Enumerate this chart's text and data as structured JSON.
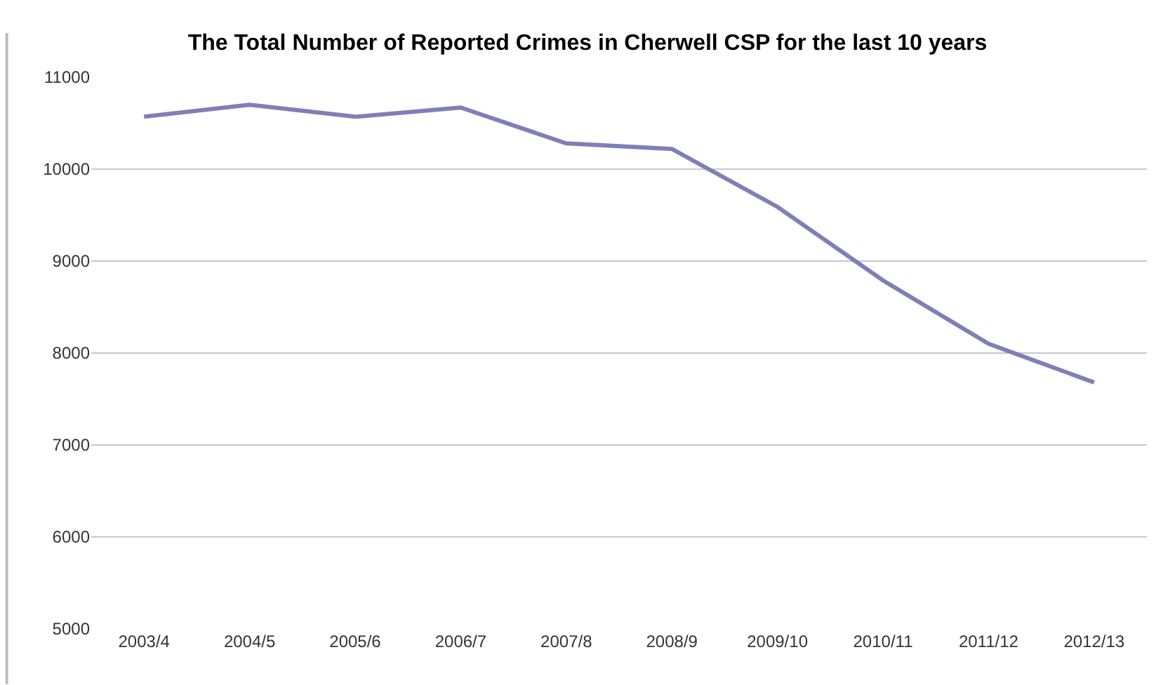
{
  "chart_data": {
    "type": "line",
    "title": "The Total Number of Reported Crimes in Cherwell CSP for the last 10 years",
    "categories": [
      "2003/4",
      "2004/5",
      "2005/6",
      "2006/7",
      "2007/8",
      "2008/9",
      "2009/10",
      "2010/11",
      "2011/12",
      "2012/13"
    ],
    "series": [
      {
        "color": "#7f7fb8",
        "values": [
          10570,
          10700,
          10570,
          10670,
          10280,
          10220,
          9590,
          8790,
          8100,
          7680
        ]
      }
    ],
    "ylim": [
      5000,
      11000
    ],
    "yticks": [
      5000,
      6000,
      7000,
      8000,
      9000,
      10000,
      11000
    ],
    "grid": "y",
    "legend": false,
    "marker": "none",
    "line_style": "solid"
  }
}
